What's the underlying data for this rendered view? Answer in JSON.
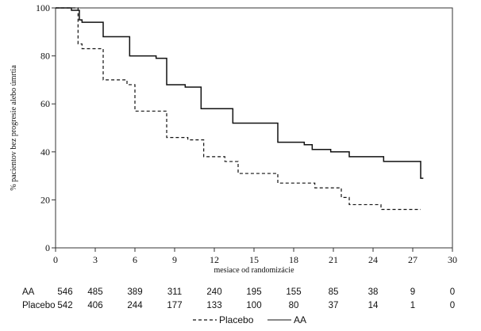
{
  "chart_data": {
    "type": "line",
    "title": "",
    "xlabel": "mesiace od randomizácie",
    "ylabel": "% pacientov bez progresie alebo úmrtia",
    "xlim": [
      0,
      30
    ],
    "ylim": [
      0,
      100
    ],
    "xticks": [
      0,
      3,
      6,
      9,
      12,
      15,
      18,
      21,
      24,
      27,
      30
    ],
    "yticks": [
      0,
      20,
      40,
      60,
      80,
      100
    ],
    "grid": false,
    "step": true,
    "series": [
      {
        "name": "AA",
        "style": "solid",
        "color": "#111111",
        "x": [
          0,
          1.2,
          1.8,
          2.0,
          3.6,
          5.6,
          7.6,
          8.4,
          9.8,
          11.0,
          13.4,
          16.8,
          18.8,
          19.4,
          20.8,
          22.2,
          24.8,
          27.6,
          27.8
        ],
        "y": [
          100,
          99,
          95,
          94,
          88,
          80,
          79,
          68,
          67,
          58,
          52,
          44,
          43,
          41,
          40,
          38,
          36,
          29,
          29
        ]
      },
      {
        "name": "Placebo",
        "style": "dashed",
        "color": "#111111",
        "x": [
          0,
          1.7,
          2.0,
          3.6,
          5.4,
          6.0,
          8.4,
          10.0,
          11.2,
          12.8,
          13.8,
          16.8,
          19.6,
          21.6,
          22.2,
          24.6,
          27.6
        ],
        "y": [
          100,
          85,
          83,
          70,
          68,
          57,
          46,
          45,
          38,
          36,
          31,
          27,
          25,
          21,
          18,
          16,
          16
        ]
      }
    ],
    "at_risk": {
      "times": [
        0,
        3,
        6,
        9,
        12,
        15,
        18,
        21,
        24,
        27,
        30
      ],
      "rows": [
        {
          "label": "AA",
          "counts": [
            546,
            485,
            389,
            311,
            240,
            195,
            155,
            85,
            38,
            9,
            0
          ]
        },
        {
          "label": "Placebo",
          "counts": [
            542,
            406,
            244,
            177,
            133,
            100,
            80,
            37,
            14,
            1,
            0
          ]
        }
      ]
    },
    "legend": {
      "position": "bottom-center",
      "entries": [
        {
          "label": "Placebo",
          "style": "dashed"
        },
        {
          "label": "AA",
          "style": "solid"
        }
      ]
    }
  }
}
